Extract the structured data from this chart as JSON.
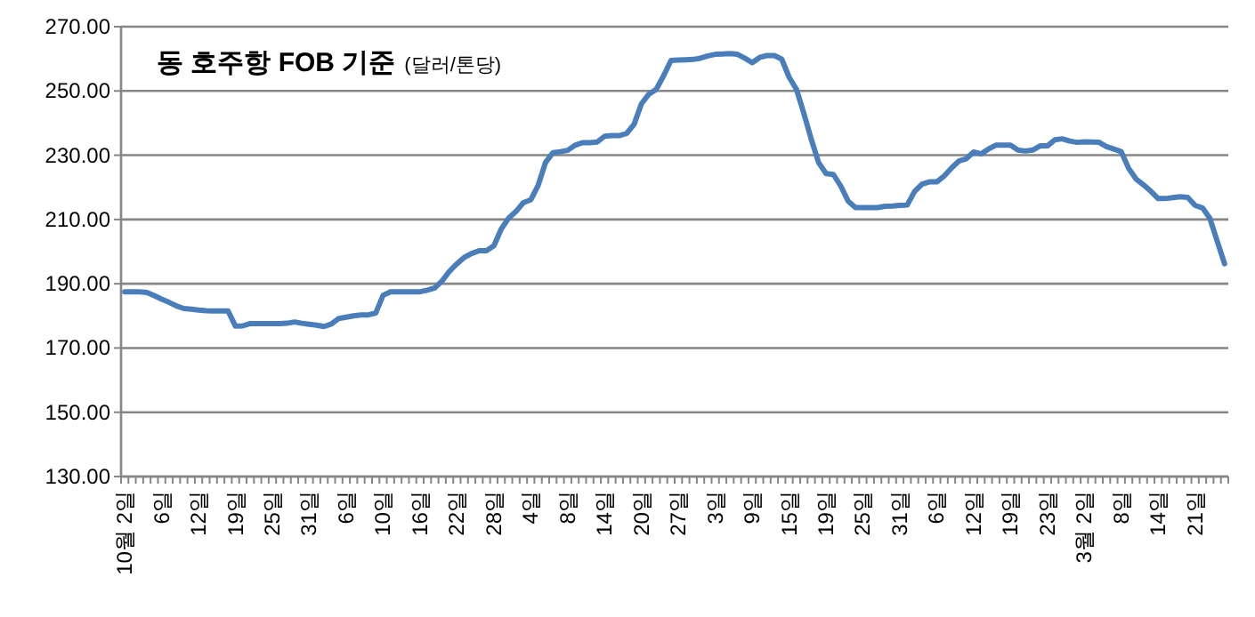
{
  "chart_data": {
    "type": "line",
    "title": "동 호주항 FOB 기준",
    "subtitle": "(달러/톤당)",
    "categories": [
      "10월 2일",
      null,
      null,
      null,
      null,
      "6일",
      null,
      null,
      null,
      null,
      "12일",
      null,
      null,
      null,
      null,
      "19일",
      null,
      null,
      null,
      null,
      "25일",
      null,
      null,
      null,
      null,
      "31일",
      null,
      null,
      null,
      null,
      "6일",
      null,
      null,
      null,
      null,
      "10일",
      null,
      null,
      null,
      null,
      "16일",
      null,
      null,
      null,
      null,
      "22일",
      null,
      null,
      null,
      null,
      "28일",
      null,
      null,
      null,
      null,
      "4일",
      null,
      null,
      null,
      null,
      "8일",
      null,
      null,
      null,
      null,
      "14일",
      null,
      null,
      null,
      null,
      "20일",
      null,
      null,
      null,
      null,
      "27일",
      null,
      null,
      null,
      null,
      "3일",
      null,
      null,
      null,
      null,
      "9일",
      null,
      null,
      null,
      null,
      "15일",
      null,
      null,
      null,
      null,
      "19일",
      null,
      null,
      null,
      null,
      "25일",
      null,
      null,
      null,
      null,
      "31일",
      null,
      null,
      null,
      null,
      "6일",
      null,
      null,
      null,
      null,
      "12일",
      null,
      null,
      null,
      null,
      "19일",
      null,
      null,
      null,
      null,
      "23일",
      null,
      null,
      null,
      null,
      "3월 2일",
      null,
      null,
      null,
      null,
      "8일",
      null,
      null,
      null,
      null,
      "14일",
      null,
      null,
      null,
      null,
      "21일",
      null,
      null,
      null,
      null
    ],
    "series": [
      {
        "color": "#4a7ebb",
        "values": [
          187.5,
          187.5,
          187.5,
          187.3,
          186.3,
          185.2,
          184.2,
          183.1,
          182.3,
          182.1,
          181.8,
          181.6,
          181.5,
          181.5,
          181.5,
          176.8,
          176.9,
          177.6,
          177.6,
          177.6,
          177.6,
          177.6,
          177.7,
          178.1,
          177.7,
          177.4,
          177.1,
          176.7,
          177.5,
          179.2,
          179.6,
          180.0,
          180.3,
          180.3,
          180.9,
          186.4,
          187.5,
          187.5,
          187.5,
          187.5,
          187.5,
          188.0,
          188.7,
          190.9,
          193.9,
          196.2,
          198.2,
          199.4,
          200.3,
          200.3,
          201.8,
          207.0,
          210.4,
          212.5,
          215.2,
          216.1,
          220.6,
          227.7,
          230.8,
          231.1,
          231.5,
          233.1,
          233.9,
          233.9,
          234.1,
          235.9,
          236.1,
          236.1,
          236.8,
          239.6,
          246.0,
          249.0,
          250.5,
          254.7,
          259.5,
          259.6,
          259.7,
          259.8,
          260.2,
          260.9,
          261.4,
          261.5,
          261.6,
          261.4,
          260.2,
          258.8,
          260.4,
          261,
          261,
          259.9,
          254.3,
          250.5,
          243.0,
          235.0,
          227.7,
          224.3,
          224.0,
          220.4,
          215.7,
          213.7,
          213.7,
          213.7,
          213.7,
          214.1,
          214.2,
          214.4,
          214.5,
          218.7,
          221.0,
          221.7,
          221.7,
          223.5,
          226.0,
          228.2,
          228.9,
          231.0,
          230.4,
          231.9,
          233.1,
          233.1,
          233.1,
          231.6,
          231.3,
          231.6,
          232.9,
          232.9,
          234.8,
          235.1,
          234.4,
          234.0,
          234.2,
          234.1,
          234.0,
          232.7,
          231.9,
          231.1,
          225.9,
          222.6,
          220.8,
          218.8,
          216.5,
          216.5,
          216.8,
          217.1,
          216.9,
          214.4,
          213.6,
          210.4,
          203.2,
          196.2
        ]
      }
    ],
    "ylim": [
      130,
      270
    ],
    "yticks": [
      {
        "value": 130,
        "label": "130.00"
      },
      {
        "value": 150,
        "label": "150.00"
      },
      {
        "value": 170,
        "label": "170.00"
      },
      {
        "value": 190,
        "label": "190.00"
      },
      {
        "value": 210,
        "label": "210.00"
      },
      {
        "value": 230,
        "label": "230.00"
      },
      {
        "value": 250,
        "label": "250.00"
      },
      {
        "value": 270,
        "label": "270.00"
      }
    ],
    "grid": "y",
    "marker": "none",
    "line_style": "solid"
  }
}
